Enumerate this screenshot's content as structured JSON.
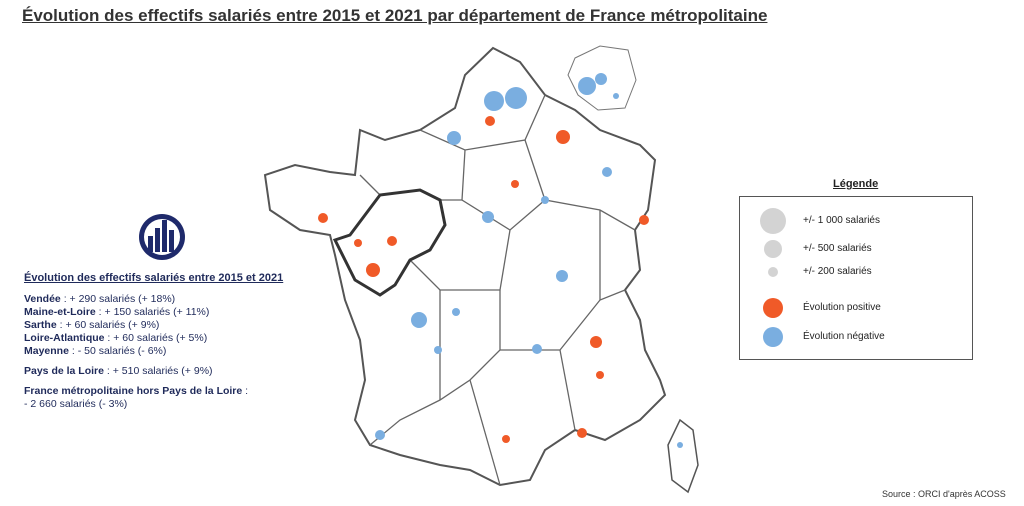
{
  "header": {
    "title": "Évolution des effectifs salariés entre 2015 et 2021 par département de France métropolitaine"
  },
  "summary": {
    "title": "Évolution des effectifs salariés entre 2015 et 2021",
    "departments": [
      {
        "name": "Vendée",
        "detail": " : + 290 salariés (+ 18%)"
      },
      {
        "name": "Maine-et-Loire",
        "detail": " : + 150 salariés (+ 11%)"
      },
      {
        "name": "Sarthe",
        "detail": " : + 60 salariés (+ 9%)"
      },
      {
        "name": "Loire-Atlantique",
        "detail": " : + 60 salariés (+ 5%)"
      },
      {
        "name": "Mayenne",
        "detail": " : - 50 salariés (- 6%)"
      }
    ],
    "region": {
      "name": "Pays de la Loire",
      "detail": " : + 510 salariés (+ 9%)"
    },
    "rest": {
      "name": "France métropolitaine hors Pays de la Loire",
      "detail": " :",
      "value": "- 2 660 salariés (- 3%)"
    }
  },
  "legend": {
    "title": "Légende",
    "sizes": [
      "+/- 1 000 salariés",
      "+/- 500 salariés",
      "+/- 200 salariés"
    ],
    "colors": [
      "Évolution positive",
      "Évolution négative"
    ]
  },
  "source": "Source : ORCI d'après ACOSS"
}
